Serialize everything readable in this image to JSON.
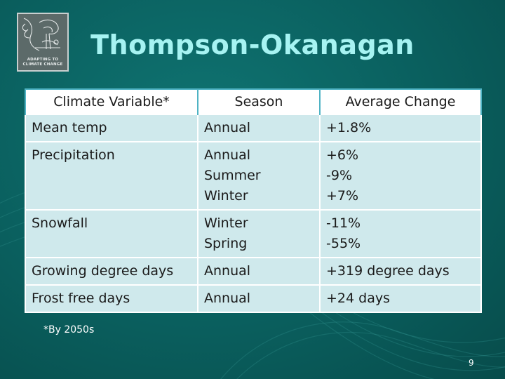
{
  "logo": {
    "text_line1": "ADAPTING TO",
    "text_line2": "CLIMATE CHANGE"
  },
  "title": "Thompson-Okanagan",
  "table": {
    "headers": [
      "Climate Variable*",
      "Season",
      "Average Change"
    ],
    "rows": [
      {
        "variable": "Mean temp",
        "seasons": [
          "Annual"
        ],
        "changes": [
          "+1.8%"
        ]
      },
      {
        "variable": "Precipitation",
        "seasons": [
          "Annual",
          "Summer",
          "Winter"
        ],
        "changes": [
          "+6%",
          "-9%",
          "+7%"
        ]
      },
      {
        "variable": "Snowfall",
        "seasons": [
          "Winter",
          "Spring"
        ],
        "changes": [
          "-11%",
          "-55%"
        ]
      },
      {
        "variable": "Growing degree days",
        "seasons": [
          "Annual"
        ],
        "changes": [
          "+319 degree days"
        ]
      },
      {
        "variable": "Frost free days",
        "seasons": [
          "Annual"
        ],
        "changes": [
          "+24 days"
        ]
      }
    ]
  },
  "footnote": "*By 2050s",
  "page_number": "9",
  "colors": {
    "background": "#0a5f5e",
    "title": "#a6f3f2",
    "cell_background": "#cfe9ec",
    "header_border": "#4fb3c4"
  }
}
